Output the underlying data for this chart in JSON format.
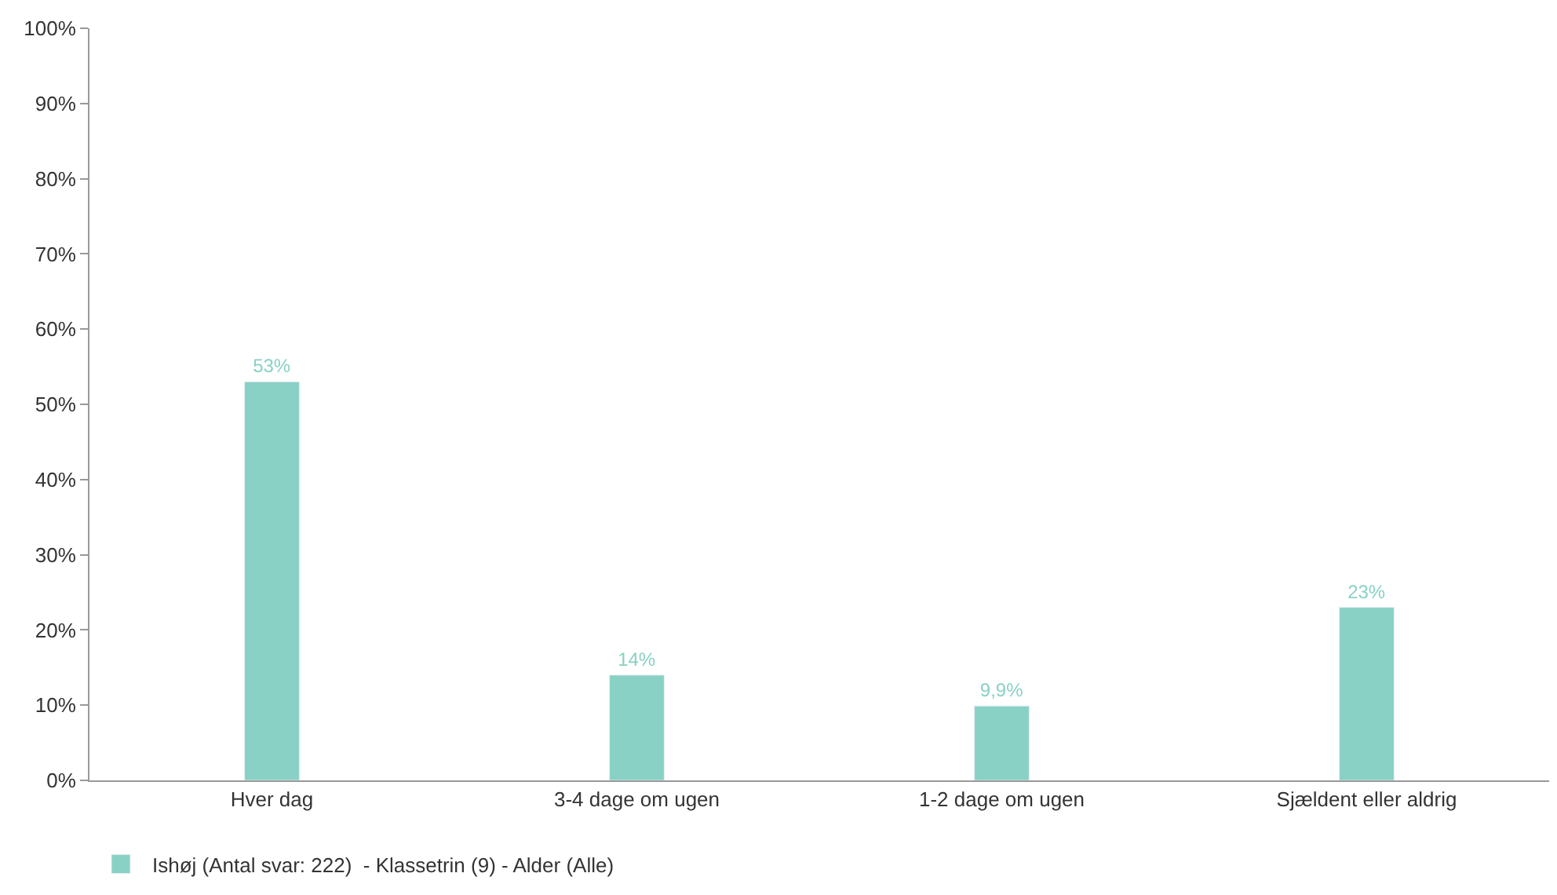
{
  "chart_data": {
    "type": "bar",
    "categories": [
      "Hver dag",
      "3-4 dage om ugen",
      "1-2 dage om ugen",
      "Sjældent eller aldrig"
    ],
    "series": [
      {
        "name": "Ishøj (Antal svar: 222)  - Klassetrin (9) - Alder (Alle)",
        "color": "#88d1c4",
        "values": [
          53,
          14,
          9.9,
          23
        ],
        "value_labels": [
          "53%",
          "14%",
          "9,9%",
          "23%"
        ]
      }
    ],
    "ylim": [
      0,
      100
    ],
    "yticks": [
      {
        "value": 0,
        "label": "0%"
      },
      {
        "value": 10,
        "label": "10%"
      },
      {
        "value": 20,
        "label": "20%"
      },
      {
        "value": 30,
        "label": "30%"
      },
      {
        "value": 40,
        "label": "40%"
      },
      {
        "value": 50,
        "label": "50%"
      },
      {
        "value": 60,
        "label": "60%"
      },
      {
        "value": 70,
        "label": "70%"
      },
      {
        "value": 80,
        "label": "80%"
      },
      {
        "value": 90,
        "label": "90%"
      },
      {
        "value": 100,
        "label": "100%"
      }
    ],
    "legend": "bottom left"
  }
}
